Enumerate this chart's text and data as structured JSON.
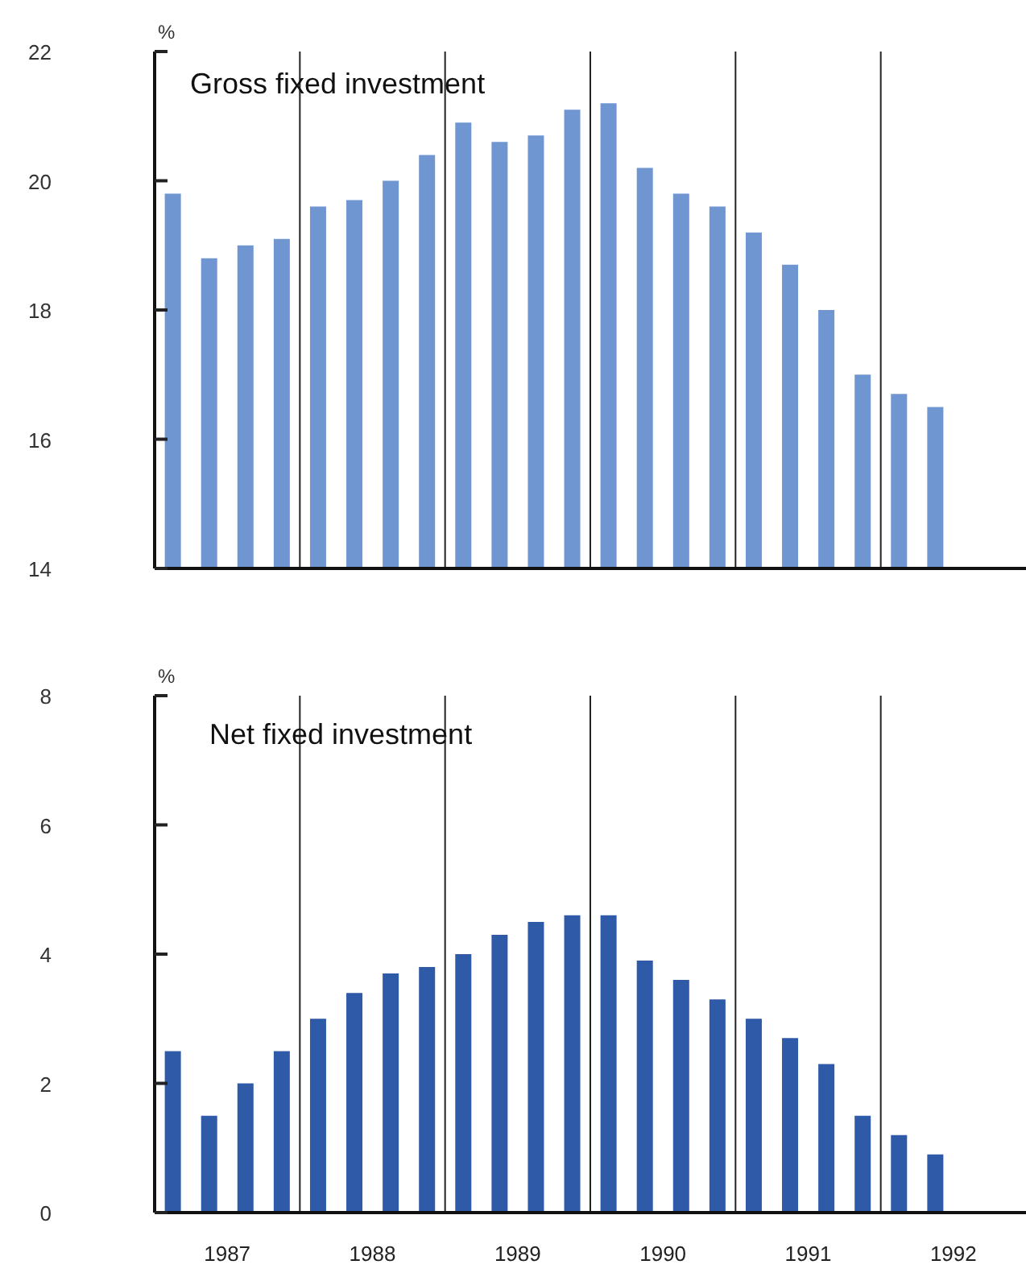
{
  "chart_data": [
    {
      "type": "bar",
      "title": "Gross fixed investment",
      "ylabel": "%",
      "categories": [
        null,
        null,
        null,
        null,
        null,
        null,
        null,
        null,
        null,
        null,
        null,
        null,
        null,
        null,
        null,
        null,
        null,
        null,
        null,
        null,
        null,
        null
      ],
      "values": [
        19.8,
        18.8,
        19.0,
        19.1,
        19.6,
        19.7,
        20.0,
        20.4,
        20.9,
        20.6,
        20.7,
        21.1,
        21.2,
        20.2,
        19.8,
        19.6,
        19.2,
        18.7,
        18.0,
        17.0,
        16.7,
        16.5
      ],
      "color": "#7096d2",
      "ylim": [
        14,
        22
      ],
      "yticks": [
        14,
        16,
        18,
        20,
        22
      ],
      "grid": "x",
      "tick_labels": "y"
    },
    {
      "type": "bar",
      "title": "Net fixed investment",
      "ylabel": "%",
      "categories": [
        null,
        "1987",
        null,
        null,
        null,
        "1988",
        null,
        null,
        null,
        "1989",
        null,
        null,
        null,
        "1990",
        null,
        null,
        null,
        "1991",
        null,
        null,
        null,
        "1992"
      ],
      "values": [
        2.5,
        1.5,
        2.0,
        2.5,
        3.0,
        3.4,
        3.7,
        3.8,
        4.0,
        4.3,
        4.5,
        4.6,
        4.6,
        3.9,
        3.6,
        3.3,
        3.0,
        2.7,
        2.3,
        1.5,
        1.2,
        0.9
      ],
      "color": "#2f5aa8",
      "ylim": [
        0,
        8
      ],
      "yticks": [
        0,
        2,
        4,
        6,
        8
      ],
      "grid": "x"
    }
  ]
}
